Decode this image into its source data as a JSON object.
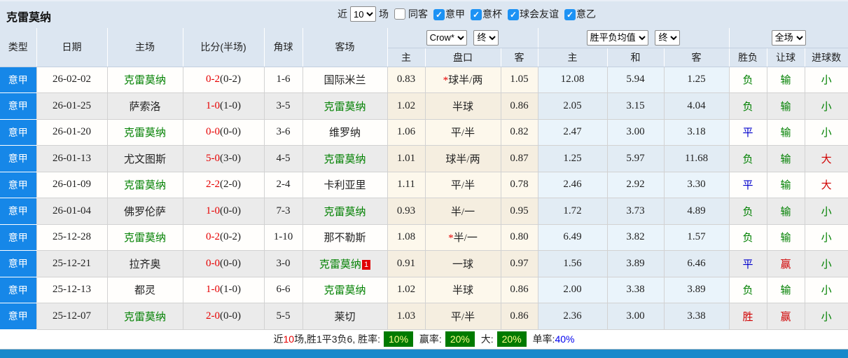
{
  "header": {
    "title": "克雷莫纳",
    "near_label": "近",
    "matches_count": "10",
    "matches_label": "场",
    "same_away_label": "同客",
    "same_away_checked": false,
    "league_filters": [
      {
        "label": "意甲",
        "checked": true
      },
      {
        "label": "意杯",
        "checked": true
      },
      {
        "label": "球会友谊",
        "checked": true
      },
      {
        "label": "意乙",
        "checked": true
      }
    ]
  },
  "table": {
    "columns": [
      "类型",
      "日期",
      "主场",
      "比分(半场)",
      "角球",
      "客场"
    ],
    "selects": {
      "odds_source": "Crow*",
      "odds_time": "终",
      "avg_type": "胜平负均值",
      "avg_time": "终",
      "scope": "全场"
    },
    "sub_columns": [
      "主",
      "盘口",
      "客",
      "主",
      "和",
      "客",
      "胜负",
      "让球",
      "进球数"
    ],
    "rows": [
      {
        "league": "意甲",
        "date": "26-02-02",
        "home": {
          "t": "克雷莫纳",
          "team": true
        },
        "score": "0-2",
        "half": "(0-2)",
        "corners": "1-6",
        "away": {
          "t": "国际米兰",
          "team": false
        },
        "o1": "0.83",
        "hc": {
          "t": "球半/两",
          "star": true
        },
        "o2": "1.05",
        "a1": "12.08",
        "a2": "5.94",
        "a3": "1.25",
        "res": {
          "t": "负",
          "c": "g"
        },
        "hres": {
          "t": "输",
          "c": "g"
        },
        "goal": {
          "t": "小",
          "c": "g"
        }
      },
      {
        "league": "意甲",
        "date": "26-01-25",
        "home": {
          "t": "萨索洛",
          "team": false
        },
        "score": "1-0",
        "half": "(1-0)",
        "corners": "3-5",
        "away": {
          "t": "克雷莫纳",
          "team": true
        },
        "o1": "1.02",
        "hc": {
          "t": "半球",
          "star": false
        },
        "o2": "0.86",
        "a1": "2.05",
        "a2": "3.15",
        "a3": "4.04",
        "res": {
          "t": "负",
          "c": "g"
        },
        "hres": {
          "t": "输",
          "c": "g"
        },
        "goal": {
          "t": "小",
          "c": "g"
        }
      },
      {
        "league": "意甲",
        "date": "26-01-20",
        "home": {
          "t": "克雷莫纳",
          "team": true
        },
        "score": "0-0",
        "half": "(0-0)",
        "corners": "3-6",
        "away": {
          "t": "维罗纳",
          "team": false
        },
        "o1": "1.06",
        "hc": {
          "t": "平/半",
          "star": false
        },
        "o2": "0.82",
        "a1": "2.47",
        "a2": "3.00",
        "a3": "3.18",
        "res": {
          "t": "平",
          "c": "b"
        },
        "hres": {
          "t": "输",
          "c": "g"
        },
        "goal": {
          "t": "小",
          "c": "g"
        }
      },
      {
        "league": "意甲",
        "date": "26-01-13",
        "home": {
          "t": "尤文图斯",
          "team": false
        },
        "score": "5-0",
        "half": "(3-0)",
        "corners": "4-5",
        "away": {
          "t": "克雷莫纳",
          "team": true
        },
        "o1": "1.01",
        "hc": {
          "t": "球半/两",
          "star": false
        },
        "o2": "0.87",
        "a1": "1.25",
        "a2": "5.97",
        "a3": "11.68",
        "res": {
          "t": "负",
          "c": "g"
        },
        "hres": {
          "t": "输",
          "c": "g"
        },
        "goal": {
          "t": "大",
          "c": "r"
        }
      },
      {
        "league": "意甲",
        "date": "26-01-09",
        "home": {
          "t": "克雷莫纳",
          "team": true
        },
        "score": "2-2",
        "half": "(2-0)",
        "corners": "2-4",
        "away": {
          "t": "卡利亚里",
          "team": false
        },
        "o1": "1.11",
        "hc": {
          "t": "平/半",
          "star": false
        },
        "o2": "0.78",
        "a1": "2.46",
        "a2": "2.92",
        "a3": "3.30",
        "res": {
          "t": "平",
          "c": "b"
        },
        "hres": {
          "t": "输",
          "c": "g"
        },
        "goal": {
          "t": "大",
          "c": "r"
        }
      },
      {
        "league": "意甲",
        "date": "26-01-04",
        "home": {
          "t": "佛罗伦萨",
          "team": false
        },
        "score": "1-0",
        "half": "(0-0)",
        "corners": "7-3",
        "away": {
          "t": "克雷莫纳",
          "team": true
        },
        "o1": "0.93",
        "hc": {
          "t": "半/一",
          "star": false
        },
        "o2": "0.95",
        "a1": "1.72",
        "a2": "3.73",
        "a3": "4.89",
        "res": {
          "t": "负",
          "c": "g"
        },
        "hres": {
          "t": "输",
          "c": "g"
        },
        "goal": {
          "t": "小",
          "c": "g"
        }
      },
      {
        "league": "意甲",
        "date": "25-12-28",
        "home": {
          "t": "克雷莫纳",
          "team": true
        },
        "score": "0-2",
        "half": "(0-2)",
        "corners": "1-10",
        "away": {
          "t": "那不勒斯",
          "team": false
        },
        "o1": "1.08",
        "hc": {
          "t": "半/一",
          "star": true
        },
        "o2": "0.80",
        "a1": "6.49",
        "a2": "3.82",
        "a3": "1.57",
        "res": {
          "t": "负",
          "c": "g"
        },
        "hres": {
          "t": "输",
          "c": "g"
        },
        "goal": {
          "t": "小",
          "c": "g"
        }
      },
      {
        "league": "意甲",
        "date": "25-12-21",
        "home": {
          "t": "拉齐奥",
          "team": false
        },
        "score": "0-0",
        "half": "(0-0)",
        "corners": "3-0",
        "away": {
          "t": "克雷莫纳",
          "team": true,
          "badge": "1"
        },
        "o1": "0.91",
        "hc": {
          "t": "一球",
          "star": false
        },
        "o2": "0.97",
        "a1": "1.56",
        "a2": "3.89",
        "a3": "6.46",
        "res": {
          "t": "平",
          "c": "b"
        },
        "hres": {
          "t": "赢",
          "c": "r"
        },
        "goal": {
          "t": "小",
          "c": "g"
        }
      },
      {
        "league": "意甲",
        "date": "25-12-13",
        "home": {
          "t": "都灵",
          "team": false
        },
        "score": "1-0",
        "half": "(1-0)",
        "corners": "6-6",
        "away": {
          "t": "克雷莫纳",
          "team": true
        },
        "o1": "1.02",
        "hc": {
          "t": "半球",
          "star": false
        },
        "o2": "0.86",
        "a1": "2.00",
        "a2": "3.38",
        "a3": "3.89",
        "res": {
          "t": "负",
          "c": "g"
        },
        "hres": {
          "t": "输",
          "c": "g"
        },
        "goal": {
          "t": "小",
          "c": "g"
        }
      },
      {
        "league": "意甲",
        "date": "25-12-07",
        "home": {
          "t": "克雷莫纳",
          "team": true
        },
        "score": "2-0",
        "half": "(0-0)",
        "corners": "5-5",
        "away": {
          "t": "莱切",
          "team": false
        },
        "o1": "1.03",
        "hc": {
          "t": "平/半",
          "star": false
        },
        "o2": "0.86",
        "a1": "2.36",
        "a2": "3.00",
        "a3": "3.38",
        "res": {
          "t": "胜",
          "c": "r"
        },
        "hres": {
          "t": "赢",
          "c": "r"
        },
        "goal": {
          "t": "小",
          "c": "g"
        }
      }
    ]
  },
  "footer": {
    "segments": [
      {
        "t": "近",
        "k": "plain"
      },
      {
        "t": "10",
        "k": "red"
      },
      {
        "t": "场,胜1平3负6, 胜率:",
        "k": "plain"
      },
      {
        "t": "10%",
        "k": "badge"
      },
      {
        "t": " 赢率:",
        "k": "plain"
      },
      {
        "t": "20%",
        "k": "badge"
      },
      {
        "t": " 大:",
        "k": "plain"
      },
      {
        "t": "20%",
        "k": "badge"
      },
      {
        "t": " 单率:",
        "k": "plain"
      },
      {
        "t": "40%",
        "k": "blue"
      }
    ]
  },
  "colors": {
    "header_bg": "#dce6f1",
    "league_cell_blue": "#1687e8",
    "checkbox_blue": "#1d92f4",
    "team_green": "#008000",
    "score_red": "#e60000",
    "win_red": "#d00000",
    "draw_blue": "#0000cc",
    "badge_green_bg": "#007a00",
    "badge_text": "#ffff8c",
    "rate_blue": "#0000ee",
    "bottom_strip_blue": "#1789cb"
  }
}
